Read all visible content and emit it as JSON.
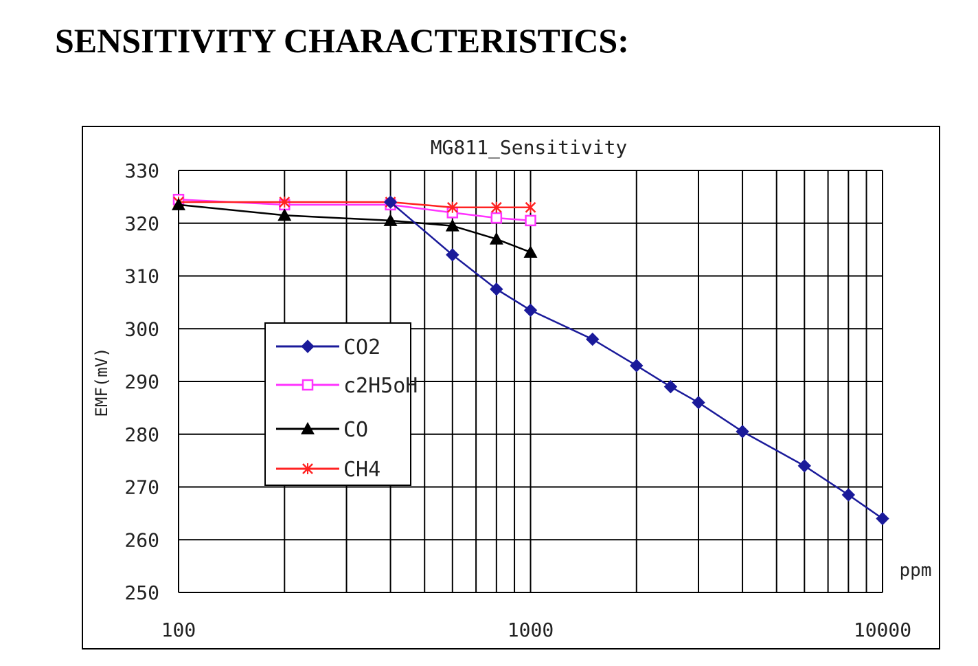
{
  "heading": "SENSITIVITY CHARACTERISTICS:",
  "chart_data": {
    "type": "line",
    "title": "MG811_Sensitivity",
    "ylabel": "EMF(mV)",
    "xlabel": "ppm",
    "x_scale": "log",
    "xlim": [
      100,
      10000
    ],
    "ylim": [
      250,
      330
    ],
    "x_tick_labels": [
      "100",
      "1000",
      "10000"
    ],
    "y_ticks": [
      250,
      260,
      270,
      280,
      290,
      300,
      310,
      320,
      330
    ],
    "grid": true,
    "legend_position": "center-left",
    "series": [
      {
        "name": "CO2",
        "color": "#1a1a9a",
        "marker": "diamond",
        "x": [
          400,
          600,
          800,
          1000,
          1500,
          2000,
          2500,
          3000,
          4000,
          6000,
          8000,
          10000
        ],
        "y": [
          324,
          314,
          307.5,
          303.5,
          298,
          293,
          289,
          286,
          280.5,
          274,
          268.5,
          264
        ]
      },
      {
        "name": "c2H5oH",
        "color": "#ff33ff",
        "marker": "square",
        "x": [
          100,
          200,
          400,
          600,
          800,
          1000
        ],
        "y": [
          324.5,
          323.5,
          323.5,
          322,
          321,
          320.5
        ]
      },
      {
        "name": "CO",
        "color": "#000000",
        "marker": "triangle",
        "x": [
          100,
          200,
          400,
          600,
          800,
          1000
        ],
        "y": [
          323.5,
          321.5,
          320.5,
          319.5,
          317,
          314.5
        ]
      },
      {
        "name": "CH4",
        "color": "#ff2222",
        "marker": "x",
        "x": [
          100,
          200,
          400,
          600,
          800,
          1000
        ],
        "y": [
          324,
          324,
          324,
          323,
          323,
          323
        ]
      }
    ]
  }
}
